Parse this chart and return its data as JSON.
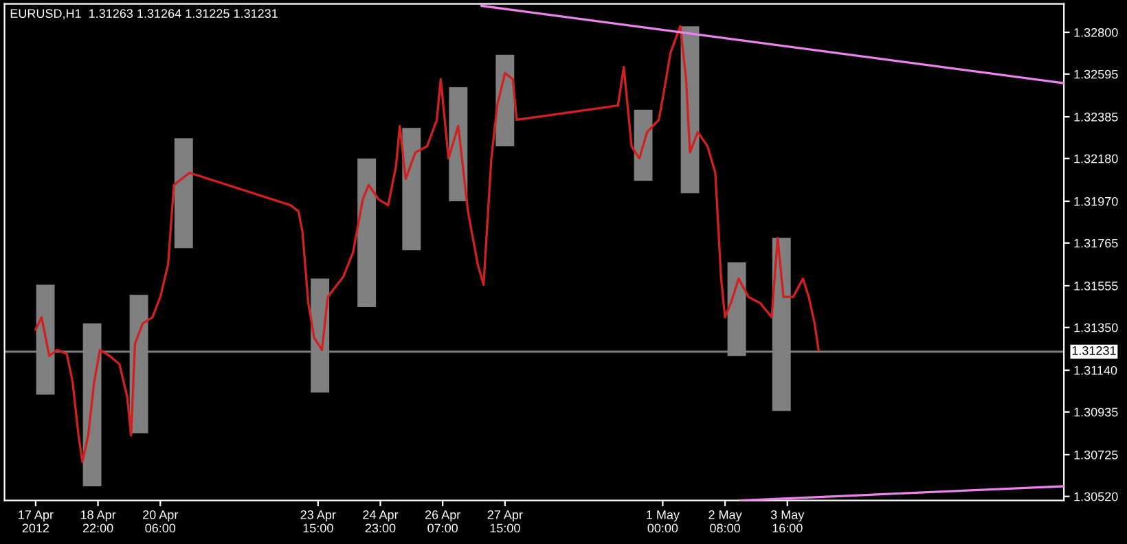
{
  "chart_data": {
    "type": "line",
    "title": "EURUSD,H1  1.31263 1.31264 1.31225 1.31231",
    "xlim": [
      "2012-04-16T22:00",
      "2012-05-09T14:00"
    ],
    "xticks": [
      {
        "value": "2012-04-17T14:00",
        "label": "17 Apr 2012"
      },
      {
        "value": "2012-04-18T22:00",
        "label": "18 Apr 22:00"
      },
      {
        "value": "2012-04-20T06:00",
        "label": "20 Apr 06:00"
      },
      {
        "value": "2012-04-23T15:00",
        "label": "23 Apr 15:00"
      },
      {
        "value": "2012-04-24T23:00",
        "label": "24 Apr 23:00"
      },
      {
        "value": "2012-04-26T07:00",
        "label": "26 Apr 07:00"
      },
      {
        "value": "2012-04-27T15:00",
        "label": "27 Apr 15:00"
      },
      {
        "value": "2012-05-01T00:00",
        "label": "1 May 00:00"
      },
      {
        "value": "2012-05-02T08:00",
        "label": "2 May 08:00"
      },
      {
        "value": "2012-05-03T16:00",
        "label": "3 May 16:00"
      }
    ],
    "ylim": [
      1.305,
      1.3294
    ],
    "yticks": [
      {
        "value": 1.3052,
        "label": "1.30520"
      },
      {
        "value": 1.30725,
        "label": "1.30725"
      },
      {
        "value": 1.30935,
        "label": "1.30935"
      },
      {
        "value": 1.3114,
        "label": "1.31140"
      },
      {
        "value": 1.3135,
        "label": "1.31350"
      },
      {
        "value": 1.31555,
        "label": "1.31555"
      },
      {
        "value": 1.31765,
        "label": "1.31765"
      },
      {
        "value": 1.3197,
        "label": "1.31970"
      },
      {
        "value": 1.3218,
        "label": "1.32180"
      },
      {
        "value": 1.32385,
        "label": "1.32385"
      },
      {
        "value": 1.32595,
        "label": "1.32595"
      },
      {
        "value": 1.328,
        "label": "1.32800"
      }
    ],
    "grid": false,
    "legend": false,
    "ref_lines": [
      {
        "axis": "y",
        "value": 1.31231,
        "label": "1.31231",
        "color": "#808080"
      }
    ],
    "series": [
      {
        "type": "bar",
        "color": "#808080",
        "x": [
          "2012-04-17T19:00",
          "2012-04-18T19:00",
          "2012-04-19T19:00",
          "2012-04-20T18:00",
          "2012-04-23T16:00",
          "2012-04-24T16:00",
          "2012-04-25T15:00",
          "2012-04-26T15:00",
          "2012-04-27T15:00",
          "2012-04-30T14:00",
          "2012-05-01T14:00",
          "2012-05-02T14:00",
          "2012-05-03T13:00"
        ],
        "base": [
          1.3102,
          1.3057,
          1.3083,
          1.3174,
          1.3103,
          1.3145,
          1.3173,
          1.3197,
          1.3224,
          1.3207,
          1.3201,
          1.3121,
          1.3094
        ],
        "values": [
          0.0054,
          0.008,
          0.0068,
          0.0054,
          0.0056,
          0.0073,
          0.006,
          0.0056,
          0.0045,
          0.0035,
          0.0082,
          0.0046,
          0.0085
        ]
      },
      {
        "color": "#d02020",
        "x": [
          "2012-04-17T14:00",
          "2012-04-17T17:00",
          "2012-04-17T21:00",
          "2012-04-18T01:00",
          "2012-04-18T06:00",
          "2012-04-18T09:00",
          "2012-04-18T12:00",
          "2012-04-18T14:00",
          "2012-04-18T17:00",
          "2012-04-18T20:00",
          "2012-04-18T23:00",
          "2012-04-19T04:00",
          "2012-04-19T09:00",
          "2012-04-19T13:00",
          "2012-04-19T15:00",
          "2012-04-19T17:00",
          "2012-04-19T21:00",
          "2012-04-20T02:00",
          "2012-04-20T06:00",
          "2012-04-20T10:00",
          "2012-04-20T13:00",
          "2012-04-20T17:00",
          "2012-04-20T21:00",
          "2012-04-23T01:00",
          "2012-04-23T05:00",
          "2012-04-23T07:00",
          "2012-04-23T10:00",
          "2012-04-23T13:00",
          "2012-04-23T17:00",
          "2012-04-23T20:00",
          "2012-04-24T04:00",
          "2012-04-24T09:00",
          "2012-04-24T14:00",
          "2012-04-24T17:00",
          "2012-04-24T22:00",
          "2012-04-25T03:00",
          "2012-04-25T07:00",
          "2012-04-25T09:00",
          "2012-04-25T12:00",
          "2012-04-25T17:00",
          "2012-04-25T23:00",
          "2012-04-26T04:00",
          "2012-04-26T06:00",
          "2012-04-26T10:00",
          "2012-04-26T15:00",
          "2012-04-26T20:00",
          "2012-04-27T01:00",
          "2012-04-27T04:00",
          "2012-04-27T08:00",
          "2012-04-27T11:00",
          "2012-04-27T15:00",
          "2012-04-27T19:00",
          "2012-04-27T21:00",
          "2012-04-30T01:00",
          "2012-04-30T04:00",
          "2012-04-30T08:00",
          "2012-04-30T12:00",
          "2012-04-30T16:00",
          "2012-04-30T22:00",
          "2012-05-01T01:00",
          "2012-05-01T04:00",
          "2012-05-01T09:00",
          "2012-05-01T12:00",
          "2012-05-01T14:00",
          "2012-05-01T18:00",
          "2012-05-01T23:00",
          "2012-05-02T03:00",
          "2012-05-02T06:00",
          "2012-05-02T08:00",
          "2012-05-02T11:00",
          "2012-05-02T15:00",
          "2012-05-02T20:00",
          "2012-05-03T02:00",
          "2012-05-03T08:00",
          "2012-05-03T11:00",
          "2012-05-03T14:00",
          "2012-05-03T19:00",
          "2012-05-04T00:00",
          "2012-05-04T03:00",
          "2012-05-04T06:00",
          "2012-05-04T08:00"
        ],
        "values": [
          1.3134,
          1.314,
          1.3121,
          1.3124,
          1.3122,
          1.3108,
          1.3082,
          1.3069,
          1.3082,
          1.3108,
          1.3124,
          1.3121,
          1.3117,
          1.3101,
          1.3082,
          1.3127,
          1.3137,
          1.314,
          1.315,
          1.3166,
          1.3205,
          1.3208,
          1.3211,
          1.3195,
          1.3192,
          1.3182,
          1.3147,
          1.313,
          1.3124,
          1.315,
          1.316,
          1.3172,
          1.3198,
          1.3205,
          1.3198,
          1.3195,
          1.3214,
          1.3234,
          1.3208,
          1.3221,
          1.3224,
          1.3237,
          1.3257,
          1.3218,
          1.3234,
          1.3192,
          1.3166,
          1.3156,
          1.3218,
          1.3244,
          1.326,
          1.3257,
          1.3237,
          1.3244,
          1.3263,
          1.3224,
          1.3218,
          1.3231,
          1.3237,
          1.3253,
          1.327,
          1.3283,
          1.3257,
          1.3221,
          1.3231,
          1.3224,
          1.3211,
          1.3159,
          1.314,
          1.3147,
          1.3159,
          1.315,
          1.3147,
          1.314,
          1.3179,
          1.315,
          1.315,
          1.3159,
          1.315,
          1.3137,
          1.3124
        ]
      },
      {
        "color": "#ee82ee",
        "x": [
          "2012-04-27T03:00",
          "2012-05-09T14:00"
        ],
        "values": [
          1.3293,
          1.3255
        ]
      },
      {
        "color": "#ee82ee",
        "x": [
          "2012-05-02T16:00",
          "2012-05-09T14:00"
        ],
        "values": [
          1.305,
          1.3057
        ]
      }
    ]
  }
}
